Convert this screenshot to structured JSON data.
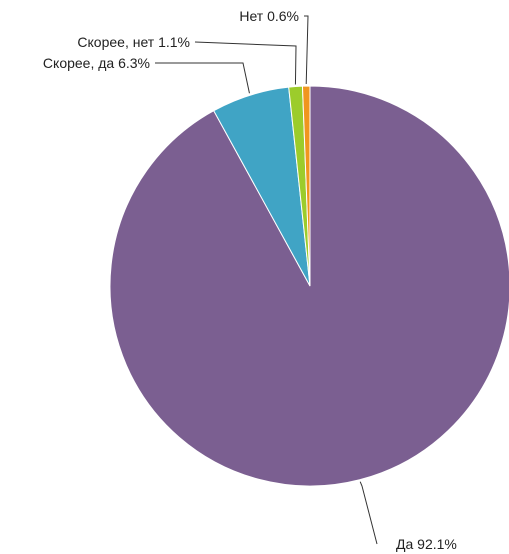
{
  "chart_data": {
    "type": "pie",
    "title": "",
    "slices": [
      {
        "label": "Да",
        "value": 92.1,
        "value_label": "92.1%",
        "color": "#7b5f91"
      },
      {
        "label": "Скорее, да",
        "value": 6.3,
        "value_label": "6.3%",
        "color": "#40a4c5"
      },
      {
        "label": "Скорее, нет",
        "value": 1.1,
        "value_label": "1.1%",
        "color": "#9ccc2b"
      },
      {
        "label": "Нет",
        "value": 0.6,
        "value_label": "0.6%",
        "color": "#f0961e"
      }
    ],
    "start_angle_deg": 0,
    "direction": "clockwise"
  }
}
